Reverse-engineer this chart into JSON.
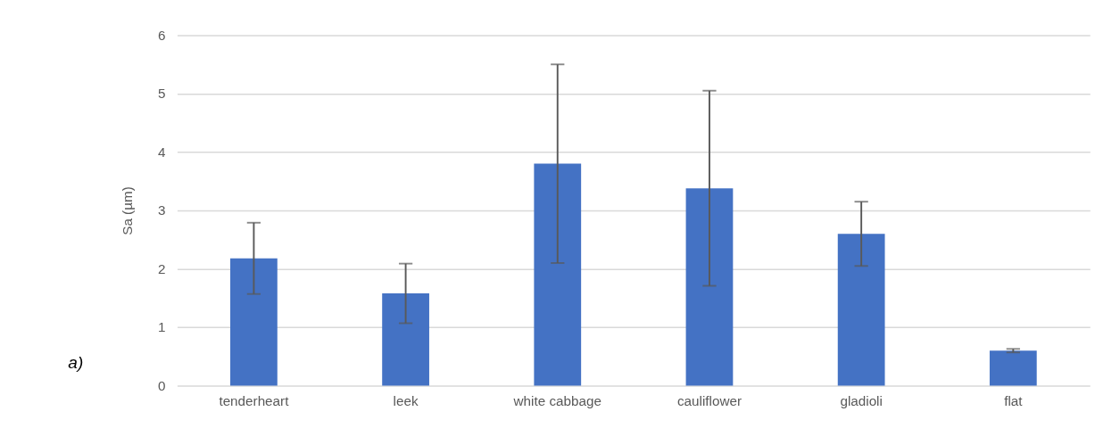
{
  "chart_data": {
    "type": "bar",
    "ylabel": "Sa (µm)",
    "categories": [
      "tenderheart",
      "leek",
      "white cabbage",
      "cauliflower",
      "gladioli",
      "flat"
    ],
    "values": [
      2.18,
      1.58,
      3.8,
      3.38,
      2.6,
      0.6
    ],
    "errors": [
      0.61,
      0.51,
      1.7,
      1.67,
      0.55,
      0.03
    ],
    "color": "#4472c4",
    "ylim": [
      0,
      6
    ],
    "yticks": [
      0,
      1,
      2,
      3,
      4,
      5,
      6
    ],
    "grid": "y",
    "annotations": [
      "a)"
    ]
  }
}
